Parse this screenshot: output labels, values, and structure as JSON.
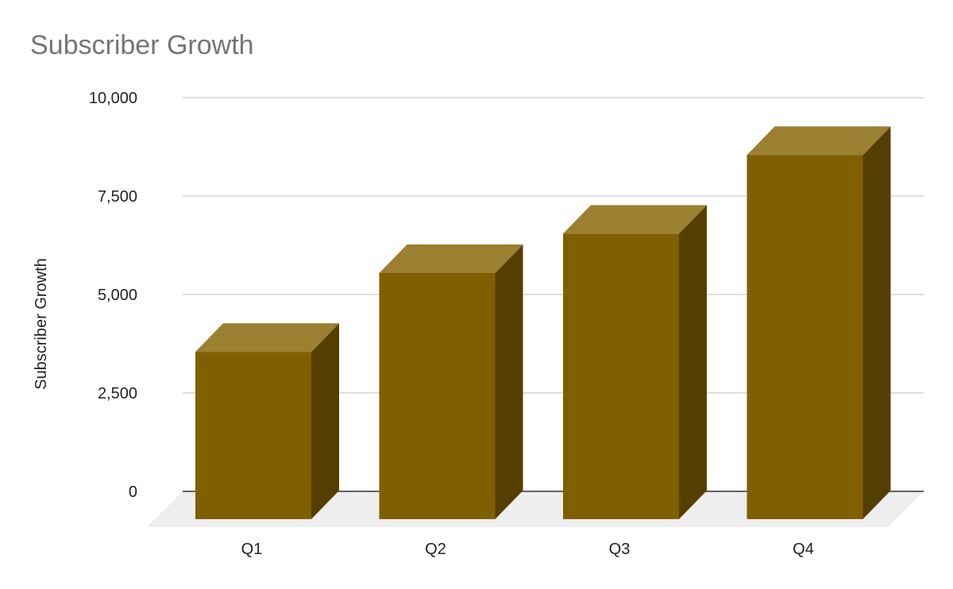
{
  "chart_data": {
    "type": "bar",
    "style": "3d",
    "title": "Subscriber Growth",
    "xlabel": "",
    "ylabel": "Subscriber Growth",
    "categories": [
      "Q1",
      "Q2",
      "Q3",
      "Q4"
    ],
    "series": [
      {
        "values": [
          4250,
          6250,
          7250,
          9250
        ]
      }
    ],
    "ylim": [
      0,
      10000
    ],
    "yticks": [
      0,
      2500,
      5000,
      7500,
      10000
    ],
    "ytick_labels": [
      "0",
      "2,500",
      "5,000",
      "7,500",
      "10,000"
    ],
    "grid": true,
    "legend": "none",
    "colors": {
      "bar_front": "#7f5f00",
      "bar_top": "#9c8031",
      "bar_side": "#553f00",
      "floor": "#eeeeee",
      "grid": "#cccccc",
      "baseline": "#333333",
      "title": "#757575"
    }
  }
}
